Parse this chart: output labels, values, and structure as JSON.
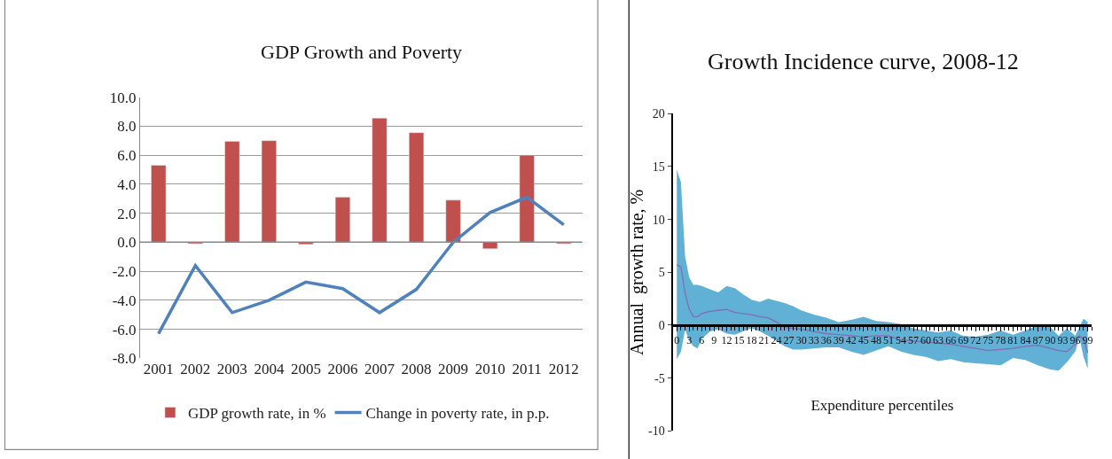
{
  "chart_data": [
    {
      "type": "bar",
      "title": "GDP Growth and Poverty",
      "categories": [
        "2001",
        "2002",
        "2003",
        "2004",
        "2005",
        "2006",
        "2007",
        "2008",
        "2009",
        "2010",
        "2011",
        "2012"
      ],
      "series": [
        {
          "name": "GDP growth rate, in %",
          "color": "#c0504d",
          "values": [
            5.3,
            -0.1,
            6.95,
            7.0,
            -0.15,
            3.1,
            8.55,
            7.55,
            2.9,
            -0.45,
            6.0,
            -0.1
          ]
        },
        {
          "name": "Change in poverty rate, in p.p.",
          "type": "line",
          "color": "#4f81bd",
          "values": [
            -6.3,
            -1.6,
            -4.85,
            -4.0,
            -2.75,
            -3.2,
            -4.85,
            -3.25,
            0.0,
            2.05,
            3.1,
            1.2
          ]
        }
      ],
      "ylim": [
        -8,
        10
      ],
      "yticks": [
        {
          "value": -8,
          "label": "-8.0"
        },
        {
          "value": -6,
          "label": "-6.0"
        },
        {
          "value": -4,
          "label": "-4.0"
        },
        {
          "value": -2,
          "label": "-2.0"
        },
        {
          "value": 0,
          "label": "0.0"
        },
        {
          "value": 2,
          "label": "2.0"
        },
        {
          "value": 4,
          "label": "4.0"
        },
        {
          "value": 6,
          "label": "6.0"
        },
        {
          "value": 8,
          "label": "8.0"
        },
        {
          "value": 10,
          "label": "10.0"
        }
      ],
      "grid": "y",
      "legend": "bottom"
    },
    {
      "type": "line",
      "title": "Growth Incidence curve, 2008-12",
      "xlabel": "Expenditure percentiles",
      "ylabel": "Annual  growth rate, %",
      "x": [
        0,
        1,
        2,
        3,
        4,
        5,
        6,
        8,
        10,
        12,
        14,
        16,
        18,
        20,
        22,
        24,
        26,
        28,
        30,
        33,
        36,
        39,
        42,
        45,
        48,
        51,
        54,
        57,
        60,
        63,
        66,
        69,
        72,
        75,
        78,
        81,
        84,
        87,
        90,
        92,
        94,
        96,
        97,
        98,
        99
      ],
      "series": [
        {
          "color": "#7f6fb0",
          "values": [
            5.7,
            5.5,
            3.0,
            1.5,
            0.8,
            0.8,
            1.1,
            1.3,
            1.4,
            1.5,
            1.2,
            1.1,
            1.0,
            0.8,
            0.7,
            0.3,
            -0.2,
            -0.3,
            -0.4,
            -0.6,
            -0.8,
            -0.9,
            -1.0,
            -1.1,
            -1.0,
            -1.0,
            -1.4,
            -1.5,
            -1.6,
            -1.7,
            -1.8,
            -2.0,
            -2.2,
            -2.4,
            -2.3,
            -2.2,
            -2.0,
            -1.9,
            -2.2,
            -2.4,
            -2.5,
            -1.8,
            -1.0,
            -1.3,
            -2.6
          ],
          "lower": [
            -3.2,
            -2.5,
            -0.4,
            -1.5,
            -2.0,
            -2.2,
            -1.3,
            -0.6,
            -0.4,
            -0.8,
            -0.9,
            -0.6,
            -0.3,
            -0.6,
            -1.0,
            -1.5,
            -2.0,
            -2.3,
            -2.3,
            -2.2,
            -2.1,
            -2.1,
            -2.5,
            -2.8,
            -2.4,
            -2.0,
            -2.5,
            -2.8,
            -3.0,
            -3.4,
            -3.2,
            -3.5,
            -3.6,
            -3.7,
            -3.8,
            -3.1,
            -3.3,
            -3.8,
            -4.2,
            -4.3,
            -3.5,
            -2.5,
            -1.2,
            -3.0,
            -4.1
          ],
          "upper": [
            14.7,
            13.5,
            6.5,
            4.5,
            3.8,
            3.8,
            3.7,
            3.4,
            3.1,
            3.7,
            3.5,
            2.9,
            2.4,
            2.2,
            2.5,
            2.3,
            2.1,
            1.8,
            1.4,
            1.0,
            0.7,
            0.3,
            0.5,
            0.8,
            0.4,
            0.3,
            0.1,
            -0.3,
            -0.5,
            -0.7,
            -0.5,
            -1.0,
            -1.1,
            -0.9,
            -0.5,
            -0.9,
            -0.5,
            0.0,
            -0.2,
            -1.0,
            -0.3,
            -1.0,
            -0.2,
            0.6,
            0.3
          ]
        }
      ],
      "xlim": [
        -1,
        100
      ],
      "xticks": [
        0,
        3,
        6,
        9,
        12,
        15,
        18,
        21,
        24,
        27,
        30,
        33,
        36,
        39,
        42,
        45,
        48,
        51,
        54,
        57,
        60,
        63,
        66,
        69,
        72,
        75,
        78,
        81,
        84,
        87,
        90,
        93,
        96,
        99
      ],
      "ylim": [
        -10,
        20
      ],
      "yticks": [
        -10,
        -5,
        0,
        5,
        10,
        15,
        20
      ],
      "grid": false,
      "legend": false
    }
  ]
}
